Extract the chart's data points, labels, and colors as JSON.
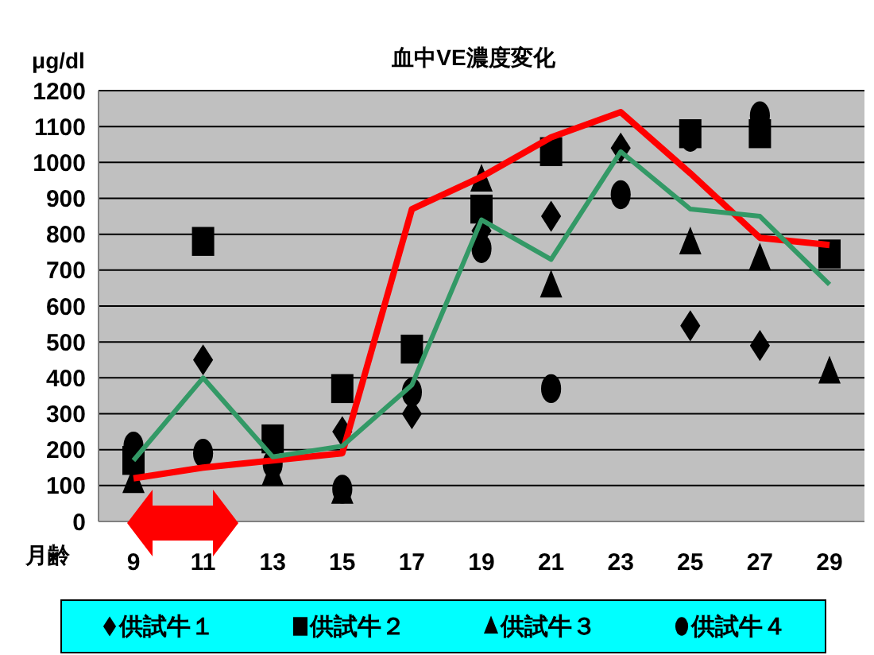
{
  "chart_data": {
    "type": "line",
    "title": "血中VE濃度変化",
    "ylabel": "μg/dl",
    "xlabel": "月齢",
    "categories": [
      "9",
      "11",
      "13",
      "15",
      "17",
      "19",
      "21",
      "23",
      "25",
      "27",
      "29"
    ],
    "series": [
      {
        "color": "#ff0000",
        "marker": "none",
        "values": [
          120,
          150,
          170,
          190,
          870,
          960,
          1070,
          1140,
          970,
          790,
          770
        ]
      },
      {
        "color": "#339966",
        "marker": "none",
        "values": [
          170,
          400,
          180,
          210,
          380,
          840,
          730,
          1030,
          870,
          850,
          660
        ]
      },
      {
        "type": "scatter",
        "name": "供試牛１",
        "color": "#000000",
        "marker": "diamond",
        "values": [
          null,
          450,
          null,
          250,
          300,
          810,
          850,
          1040,
          545,
          490,
          null
        ]
      },
      {
        "type": "scatter",
        "name": "供試牛２",
        "color": "#000000",
        "marker": "square",
        "values": [
          170,
          780,
          230,
          370,
          480,
          870,
          1030,
          null,
          1080,
          1080,
          745
        ]
      },
      {
        "type": "scatter",
        "name": "供試牛３",
        "color": "#000000",
        "marker": "triangle",
        "values": [
          110,
          null,
          130,
          80,
          null,
          950,
          655,
          null,
          775,
          730,
          415
        ]
      },
      {
        "type": "scatter",
        "name": "供試牛４",
        "color": "#000000",
        "marker": "circle",
        "values": [
          210,
          190,
          160,
          90,
          360,
          760,
          370,
          910,
          1070,
          1130,
          null
        ]
      }
    ],
    "ylim": [
      0,
      1200
    ],
    "yticks": [
      0,
      100,
      200,
      300,
      400,
      500,
      600,
      700,
      800,
      900,
      1000,
      1100,
      1200
    ],
    "grid": "y",
    "legend": "bottom"
  }
}
